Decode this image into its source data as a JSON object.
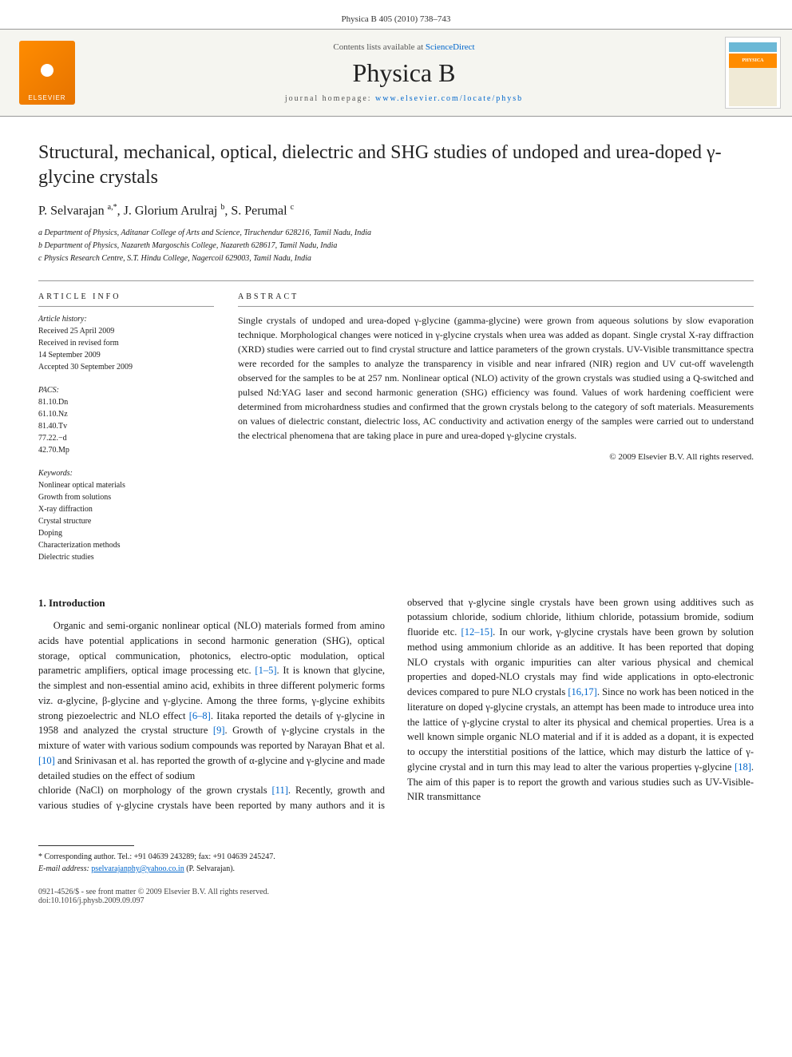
{
  "header": {
    "citation": "Physica B 405 (2010) 738–743"
  },
  "banner": {
    "contents_prefix": "Contents lists available at ",
    "contents_link": "ScienceDirect",
    "journal_name": "Physica B",
    "homepage_prefix": "journal homepage: ",
    "homepage_link": "www.elsevier.com/locate/physb",
    "publisher": "ELSEVIER",
    "cover_label": "PHYSICA"
  },
  "article": {
    "title": "Structural, mechanical, optical, dielectric and SHG studies of undoped and urea-doped γ-glycine crystals",
    "authors_html": "P. Selvarajan <sup>a,*</sup>, J. Glorium Arulraj <sup>b</sup>, S. Perumal <sup>c</sup>",
    "affiliations": [
      "a Department of Physics, Aditanar College of Arts and Science, Tiruchendur 628216, Tamil Nadu, India",
      "b Department of Physics, Nazareth Margoschis College, Nazareth 628617, Tamil Nadu, India",
      "c Physics Research Centre, S.T. Hindu College, Nagercoil 629003, Tamil Nadu, India"
    ]
  },
  "info": {
    "heading": "ARTICLE INFO",
    "history_title": "Article history:",
    "history": [
      "Received 25 April 2009",
      "Received in revised form",
      "14 September 2009",
      "Accepted 30 September 2009"
    ],
    "pacs_title": "PACS:",
    "pacs": [
      "81.10.Dn",
      "61.10.Nz",
      "81.40.Tv",
      "77.22.−d",
      "42.70.Mp"
    ],
    "keywords_title": "Keywords:",
    "keywords": [
      "Nonlinear optical materials",
      "Growth from solutions",
      "X-ray diffraction",
      "Crystal structure",
      "Doping",
      "Characterization methods",
      "Dielectric studies"
    ]
  },
  "abstract": {
    "heading": "ABSTRACT",
    "text": "Single crystals of undoped and urea-doped γ-glycine (gamma-glycine) were grown from aqueous solutions by slow evaporation technique. Morphological changes were noticed in γ-glycine crystals when urea was added as dopant. Single crystal X-ray diffraction (XRD) studies were carried out to find crystal structure and lattice parameters of the grown crystals. UV-Visible transmittance spectra were recorded for the samples to analyze the transparency in visible and near infrared (NIR) region and UV cut-off wavelength observed for the samples to be at 257 nm. Nonlinear optical (NLO) activity of the grown crystals was studied using a Q-switched and pulsed Nd:YAG laser and second harmonic generation (SHG) efficiency was found. Values of work hardening coefficient were determined from microhardness studies and confirmed that the grown crystals belong to the category of soft materials. Measurements on values of dielectric constant, dielectric loss, AC conductivity and activation energy of the samples were carried out to understand the electrical phenomena that are taking place in pure and urea-doped γ-glycine crystals.",
    "copyright": "© 2009 Elsevier B.V. All rights reserved."
  },
  "body": {
    "section_heading": "1. Introduction",
    "col1": "Organic and semi-organic nonlinear optical (NLO) materials formed from amino acids have potential applications in second harmonic generation (SHG), optical storage, optical communication, photonics, electro-optic modulation, optical parametric amplifiers, optical image processing etc. [1–5]. It is known that glycine, the simplest and non-essential amino acid, exhibits in three different polymeric forms viz. α-glycine, β-glycine and γ-glycine. Among the three forms, γ-glycine exhibits strong piezoelectric and NLO effect [6–8]. Iitaka reported the details of γ-glycine in 1958 and analyzed the crystal structure [9]. Growth of γ-glycine crystals in the mixture of water with various sodium compounds was reported by Narayan Bhat et al. [10] and Srinivasan et al. has reported the growth of α-glycine and γ-glycine and made detailed studies on the effect of sodium",
    "col2": "chloride (NaCl) on morphology of the grown crystals [11]. Recently, growth and various studies of γ-glycine crystals have been reported by many authors and it is observed that γ-glycine single crystals have been grown using additives such as potassium chloride, sodium chloride, lithium chloride, potassium bromide, sodium fluoride etc. [12–15]. In our work, γ-glycine crystals have been grown by solution method using ammonium chloride as an additive. It has been reported that doping NLO crystals with organic impurities can alter various physical and chemical properties and doped-NLO crystals may find wide applications in opto-electronic devices compared to pure NLO crystals [16,17]. Since no work has been noticed in the literature on doped γ-glycine crystals, an attempt has been made to introduce urea into the lattice of γ-glycine crystal to alter its physical and chemical properties. Urea is a well known simple organic NLO material and if it is added as a dopant, it is expected to occupy the interstitial positions of the lattice, which may disturb the lattice of γ-glycine crystal and in turn this may lead to alter the various properties γ-glycine [18]. The aim of this paper is to report the growth and various studies such as UV-Visible-NIR transmittance"
  },
  "footnotes": {
    "corresponding": "* Corresponding author. Tel.: +91 04639 243289; fax: +91 04639 245247.",
    "email_label": "E-mail address: ",
    "email": "pselvarajanphy@yahoo.co.in",
    "email_suffix": " (P. Selvarajan)."
  },
  "footer": {
    "issn_line": "0921-4526/$ - see front matter © 2009 Elsevier B.V. All rights reserved.",
    "doi_line": "doi:10.1016/j.physb.2009.09.097"
  },
  "colors": {
    "link": "#0066cc",
    "rule": "#999999",
    "elsevier_orange": "#ff8c00"
  }
}
